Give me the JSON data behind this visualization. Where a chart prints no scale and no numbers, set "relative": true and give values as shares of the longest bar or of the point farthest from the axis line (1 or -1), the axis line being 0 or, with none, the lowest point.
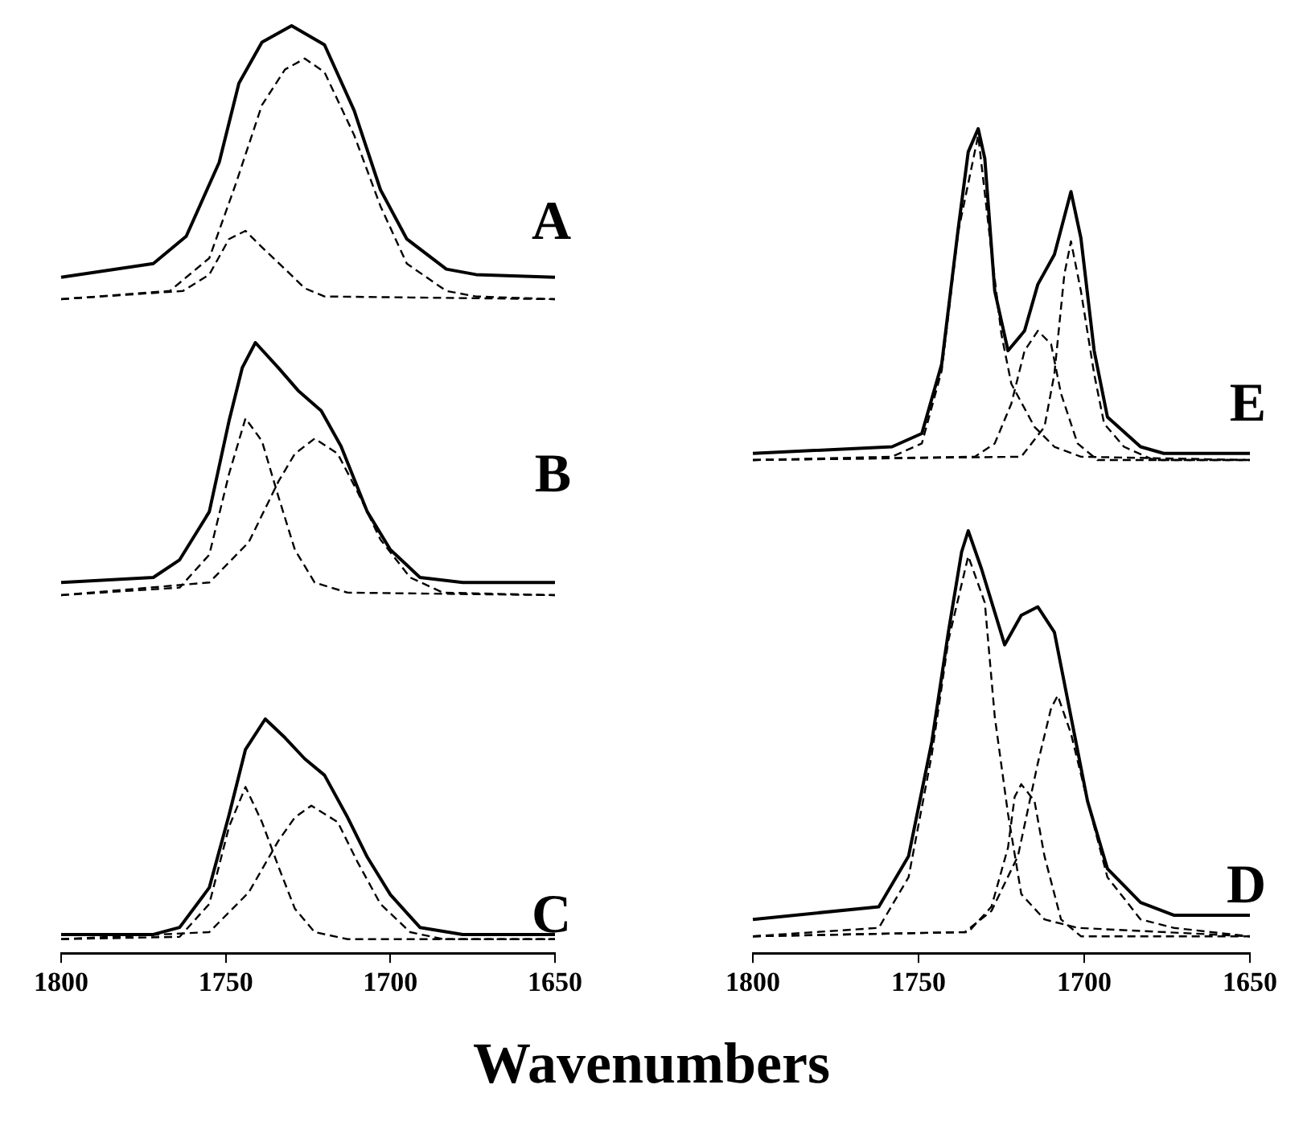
{
  "chart_data": [
    {
      "type": "line",
      "title": "A",
      "relative": true,
      "xlim": [
        1800,
        1650
      ],
      "tick_labels": false,
      "series": [
        {
          "color": "#000000",
          "line_style": "solid",
          "x": [
            1800,
            1772,
            1762,
            1752,
            1746,
            1739,
            1730,
            1720,
            1711,
            1703,
            1695,
            1683,
            1674,
            1650
          ],
          "values": [
            0.08,
            0.13,
            0.23,
            0.5,
            0.79,
            0.94,
            1,
            0.93,
            0.69,
            0.4,
            0.22,
            0.11,
            0.09,
            0.08
          ]
        },
        {
          "color": "#000000",
          "line_style": "dashed",
          "x": [
            1800,
            1767,
            1755,
            1747,
            1739,
            1732,
            1726,
            1720,
            1711,
            1703,
            1695,
            1683,
            1674,
            1650
          ],
          "values": [
            0,
            0.03,
            0.15,
            0.42,
            0.71,
            0.84,
            0.88,
            0.83,
            0.6,
            0.34,
            0.13,
            0.03,
            0.01,
            0
          ]
        },
        {
          "color": "#000000",
          "line_style": "dashed",
          "x": [
            1800,
            1763,
            1755,
            1749,
            1744,
            1739,
            1732,
            1726,
            1720,
            1650
          ],
          "values": [
            0,
            0.03,
            0.09,
            0.22,
            0.25,
            0.19,
            0.11,
            0.04,
            0.01,
            0
          ]
        }
      ]
    },
    {
      "type": "line",
      "title": "B",
      "relative": true,
      "xlim": [
        1800,
        1650
      ],
      "tick_labels": false,
      "series": [
        {
          "color": "#000000",
          "line_style": "solid",
          "x": [
            1800,
            1772,
            1764,
            1755,
            1749,
            1745,
            1741,
            1734,
            1728,
            1721,
            1715,
            1707,
            1700,
            1691,
            1678,
            1650
          ],
          "values": [
            0.05,
            0.07,
            0.14,
            0.33,
            0.69,
            0.9,
            1,
            0.9,
            0.81,
            0.73,
            0.59,
            0.33,
            0.18,
            0.07,
            0.05,
            0.05
          ]
        },
        {
          "color": "#000000",
          "line_style": "dashed",
          "x": [
            1800,
            1764,
            1755,
            1749,
            1744,
            1739,
            1734,
            1729,
            1723,
            1713,
            1650
          ],
          "values": [
            0,
            0.03,
            0.16,
            0.48,
            0.7,
            0.61,
            0.39,
            0.18,
            0.05,
            0.01,
            0
          ]
        },
        {
          "color": "#000000",
          "line_style": "dashed",
          "x": [
            1800,
            1755,
            1743,
            1734,
            1729,
            1723,
            1716,
            1710,
            1703,
            1694,
            1684,
            1650
          ],
          "values": [
            0,
            0.05,
            0.21,
            0.45,
            0.56,
            0.62,
            0.56,
            0.41,
            0.22,
            0.07,
            0.01,
            0
          ]
        }
      ]
    },
    {
      "type": "line",
      "title": "C",
      "xlabel": "Wavenumbers",
      "relative": true,
      "xlim": [
        1800,
        1650
      ],
      "xticks": [
        1800,
        1750,
        1700,
        1650
      ],
      "tick_labels": "x",
      "series": [
        {
          "color": "#000000",
          "line_style": "solid",
          "x": [
            1800,
            1772,
            1764,
            1755,
            1749,
            1744,
            1738,
            1732,
            1726,
            1720,
            1713,
            1707,
            1700,
            1691,
            1678,
            1650
          ],
          "values": [
            0.08,
            0.08,
            0.11,
            0.28,
            0.59,
            0.87,
            1,
            0.92,
            0.83,
            0.76,
            0.58,
            0.41,
            0.25,
            0.11,
            0.08,
            0.08
          ]
        },
        {
          "color": "#000000",
          "line_style": "dashed",
          "x": [
            1800,
            1764,
            1755,
            1749,
            1744,
            1739,
            1734,
            1729,
            1723,
            1713,
            1650
          ],
          "values": [
            0.06,
            0.07,
            0.21,
            0.54,
            0.71,
            0.56,
            0.37,
            0.19,
            0.09,
            0.06,
            0.06
          ]
        },
        {
          "color": "#000000",
          "line_style": "dashed",
          "x": [
            1800,
            1755,
            1743,
            1734,
            1729,
            1724,
            1716,
            1710,
            1703,
            1694,
            1684,
            1650
          ],
          "values": [
            0.06,
            0.09,
            0.26,
            0.48,
            0.58,
            0.63,
            0.56,
            0.39,
            0.21,
            0.09,
            0.06,
            0.06
          ]
        }
      ]
    },
    {
      "type": "line",
      "title": "E",
      "relative": true,
      "xlim": [
        1800,
        1650
      ],
      "tick_labels": false,
      "series": [
        {
          "color": "#000000",
          "line_style": "solid",
          "x": [
            1800,
            1758,
            1749,
            1743,
            1738,
            1735,
            1732,
            1730,
            1727,
            1723,
            1718,
            1714,
            1709,
            1704,
            1701,
            1697,
            1693,
            1683,
            1676,
            1650
          ],
          "values": [
            0.02,
            0.04,
            0.08,
            0.29,
            0.7,
            0.93,
            1,
            0.91,
            0.51,
            0.33,
            0.39,
            0.53,
            0.62,
            0.81,
            0.67,
            0.33,
            0.13,
            0.04,
            0.02,
            0.02
          ]
        },
        {
          "color": "#000000",
          "line_style": "dashed",
          "x": [
            1800,
            1758,
            1749,
            1743,
            1738,
            1732,
            1728,
            1725,
            1722,
            1715,
            1709,
            1701,
            1650
          ],
          "values": [
            0,
            0.01,
            0.05,
            0.27,
            0.69,
            0.98,
            0.63,
            0.38,
            0.23,
            0.1,
            0.04,
            0.01,
            0
          ]
        },
        {
          "color": "#000000",
          "line_style": "dashed",
          "x": [
            1800,
            1733,
            1727,
            1722,
            1718,
            1714,
            1710,
            1707,
            1702,
            1696,
            1650
          ],
          "values": [
            0,
            0.01,
            0.05,
            0.17,
            0.33,
            0.39,
            0.35,
            0.2,
            0.05,
            0,
            0
          ]
        },
        {
          "color": "#000000",
          "line_style": "dashed",
          "x": [
            1800,
            1719,
            1712,
            1709,
            1706,
            1704,
            1701,
            1697,
            1694,
            1688,
            1679,
            1650
          ],
          "values": [
            0,
            0.01,
            0.1,
            0.26,
            0.56,
            0.66,
            0.51,
            0.26,
            0.11,
            0.04,
            0,
            0
          ]
        }
      ]
    },
    {
      "type": "line",
      "title": "D",
      "relative": true,
      "xlim": [
        1800,
        1650
      ],
      "xticks": [
        1800,
        1750,
        1700,
        1650
      ],
      "tick_labels": "x",
      "series": [
        {
          "color": "#000000",
          "line_style": "solid",
          "x": [
            1800,
            1762,
            1753,
            1746,
            1741,
            1737,
            1735,
            1731,
            1724,
            1719,
            1714,
            1709,
            1704,
            1699,
            1693,
            1683,
            1673,
            1650
          ],
          "values": [
            0.08,
            0.11,
            0.23,
            0.5,
            0.76,
            0.95,
            1,
            0.91,
            0.73,
            0.8,
            0.82,
            0.76,
            0.56,
            0.36,
            0.2,
            0.12,
            0.09,
            0.09
          ]
        },
        {
          "color": "#000000",
          "line_style": "dashed",
          "x": [
            1800,
            1762,
            1753,
            1746,
            1741,
            1735,
            1730,
            1727,
            1723,
            1719,
            1712,
            1702,
            1650
          ],
          "values": [
            0.04,
            0.06,
            0.18,
            0.47,
            0.74,
            0.94,
            0.83,
            0.56,
            0.33,
            0.14,
            0.08,
            0.06,
            0.04
          ]
        },
        {
          "color": "#000000",
          "line_style": "dashed",
          "x": [
            1800,
            1735,
            1728,
            1723,
            1721,
            1719,
            1715,
            1712,
            1707,
            1701,
            1650
          ],
          "values": [
            0.04,
            0.05,
            0.11,
            0.25,
            0.37,
            0.4,
            0.36,
            0.23,
            0.08,
            0.04,
            0.04
          ]
        },
        {
          "color": "#000000",
          "line_style": "dashed",
          "x": [
            1800,
            1736,
            1728,
            1720,
            1714,
            1710,
            1708,
            1704,
            1699,
            1693,
            1683,
            1673,
            1650
          ],
          "values": [
            0.04,
            0.05,
            0.1,
            0.23,
            0.45,
            0.58,
            0.61,
            0.52,
            0.36,
            0.18,
            0.08,
            0.06,
            0.04
          ]
        }
      ]
    }
  ]
}
